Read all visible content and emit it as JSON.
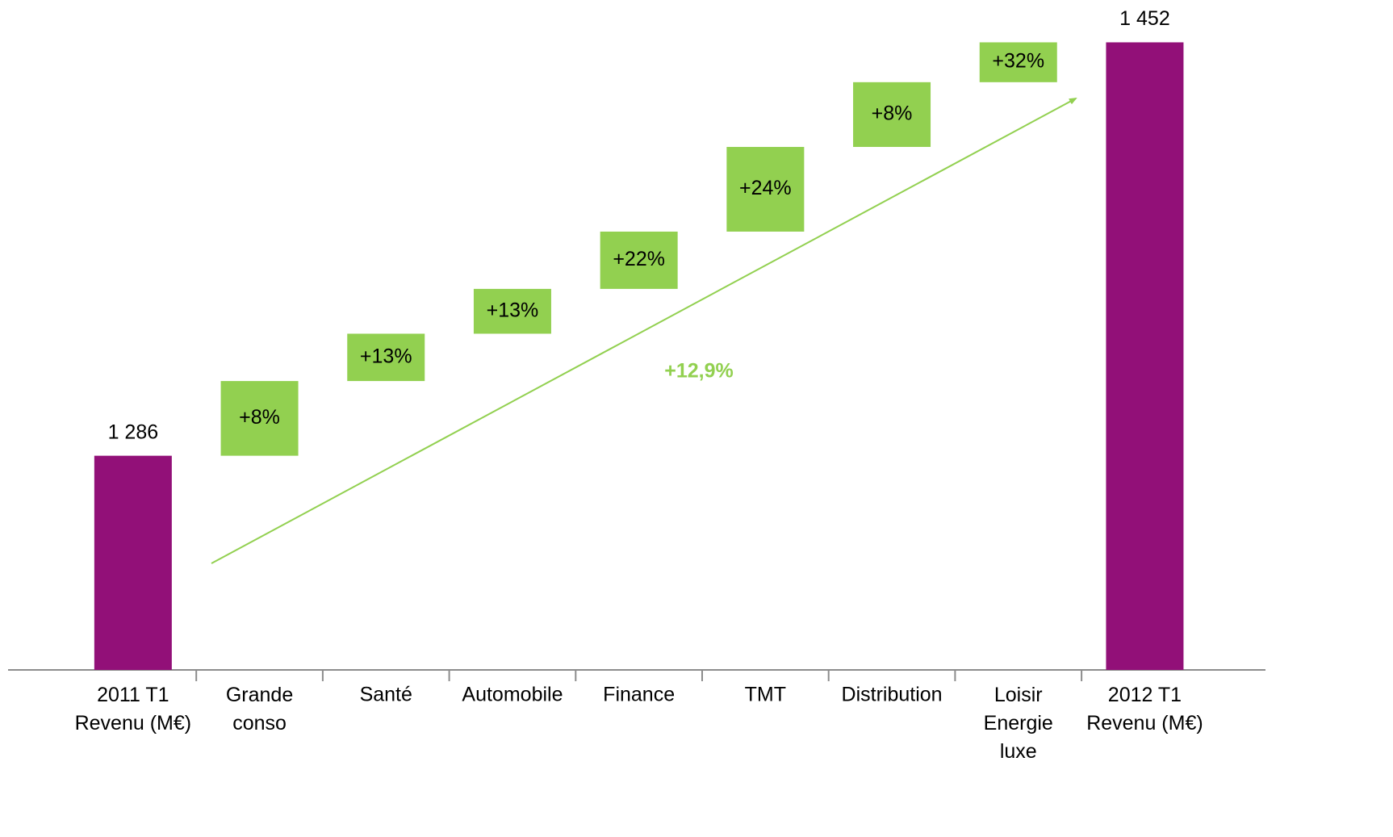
{
  "chart_data": {
    "type": "waterfall",
    "categories": [
      "2011 T1\nRevenu (M€)",
      "Grande\nconso",
      "Santé",
      "Automobile",
      "Finance",
      "TMT",
      "Distribution",
      "Loisir\nEnergie\nluxe",
      "2012 T1\nRevenu (M€)"
    ],
    "measure": [
      "total",
      "relative",
      "relative",
      "relative",
      "relative",
      "relative",
      "relative",
      "relative",
      "total"
    ],
    "values": [
      1286,
      30,
      19,
      18,
      23,
      34,
      26,
      16,
      1452
    ],
    "value_labels": [
      "1 286",
      null,
      null,
      null,
      null,
      null,
      null,
      null,
      "1 452"
    ],
    "growth_labels": [
      null,
      "+8%",
      "+13%",
      "+13%",
      "+22%",
      "+24%",
      "+8%",
      "+32%",
      null
    ],
    "total_color": "#921078",
    "step_color": "#92d050",
    "trend_label": "+12,9%",
    "ylim": [
      1200,
      1469
    ]
  }
}
